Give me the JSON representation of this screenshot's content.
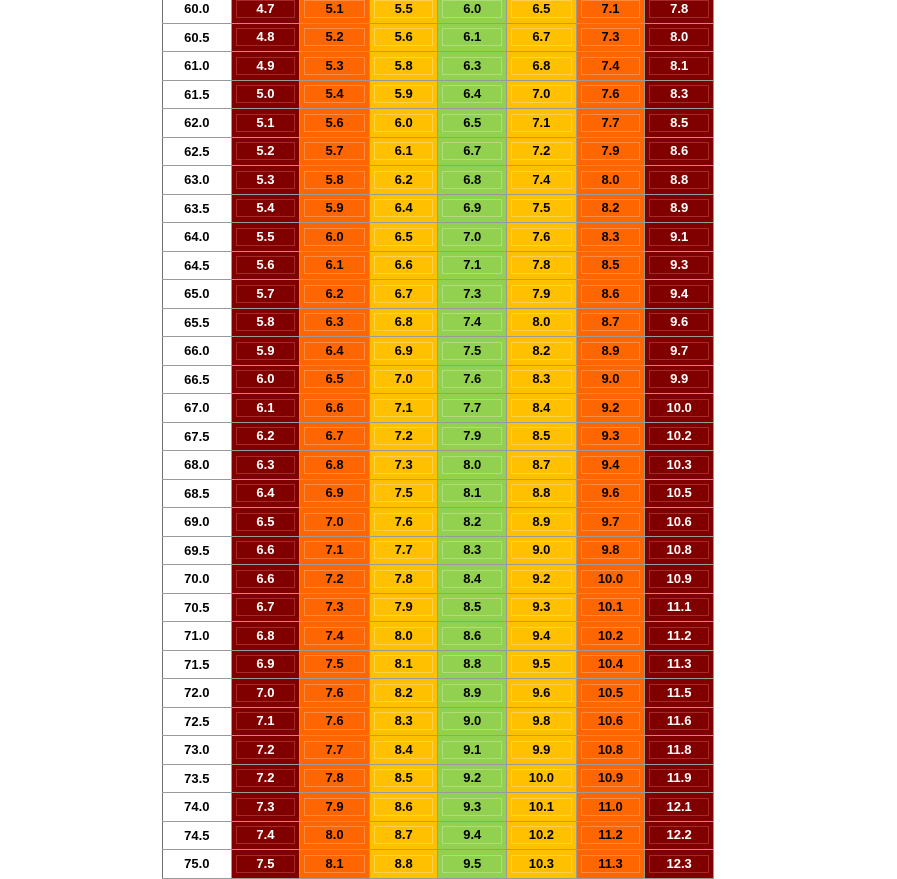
{
  "table": {
    "band_colors": [
      "#800000",
      "#ff6600",
      "#ffc000",
      "#92d050",
      "#ffc000",
      "#ff6600",
      "#800000"
    ],
    "band_text_colors": [
      "#ffffff",
      "#000000",
      "#000000",
      "#000000",
      "#000000",
      "#000000",
      "#ffffff"
    ],
    "band_box_borders": [
      "#a52a2a",
      "#ff8c42",
      "#ffd24d",
      "#b0dc7a",
      "#ffd24d",
      "#ff8c42",
      "#a52a2a"
    ],
    "rows": [
      {
        "label": "60.0",
        "values": [
          "4.7",
          "5.1",
          "5.5",
          "6.0",
          "6.5",
          "7.1",
          "7.8"
        ]
      },
      {
        "label": "60.5",
        "values": [
          "4.8",
          "5.2",
          "5.6",
          "6.1",
          "6.7",
          "7.3",
          "8.0"
        ]
      },
      {
        "label": "61.0",
        "values": [
          "4.9",
          "5.3",
          "5.8",
          "6.3",
          "6.8",
          "7.4",
          "8.1"
        ]
      },
      {
        "label": "61.5",
        "values": [
          "5.0",
          "5.4",
          "5.9",
          "6.4",
          "7.0",
          "7.6",
          "8.3"
        ]
      },
      {
        "label": "62.0",
        "values": [
          "5.1",
          "5.6",
          "6.0",
          "6.5",
          "7.1",
          "7.7",
          "8.5"
        ]
      },
      {
        "label": "62.5",
        "values": [
          "5.2",
          "5.7",
          "6.1",
          "6.7",
          "7.2",
          "7.9",
          "8.6"
        ]
      },
      {
        "label": "63.0",
        "values": [
          "5.3",
          "5.8",
          "6.2",
          "6.8",
          "7.4",
          "8.0",
          "8.8"
        ]
      },
      {
        "label": "63.5",
        "values": [
          "5.4",
          "5.9",
          "6.4",
          "6.9",
          "7.5",
          "8.2",
          "8.9"
        ]
      },
      {
        "label": "64.0",
        "values": [
          "5.5",
          "6.0",
          "6.5",
          "7.0",
          "7.6",
          "8.3",
          "9.1"
        ]
      },
      {
        "label": "64.5",
        "values": [
          "5.6",
          "6.1",
          "6.6",
          "7.1",
          "7.8",
          "8.5",
          "9.3"
        ]
      },
      {
        "label": "65.0",
        "values": [
          "5.7",
          "6.2",
          "6.7",
          "7.3",
          "7.9",
          "8.6",
          "9.4"
        ]
      },
      {
        "label": "65.5",
        "values": [
          "5.8",
          "6.3",
          "6.8",
          "7.4",
          "8.0",
          "8.7",
          "9.6"
        ]
      },
      {
        "label": "66.0",
        "values": [
          "5.9",
          "6.4",
          "6.9",
          "7.5",
          "8.2",
          "8.9",
          "9.7"
        ]
      },
      {
        "label": "66.5",
        "values": [
          "6.0",
          "6.5",
          "7.0",
          "7.6",
          "8.3",
          "9.0",
          "9.9"
        ]
      },
      {
        "label": "67.0",
        "values": [
          "6.1",
          "6.6",
          "7.1",
          "7.7",
          "8.4",
          "9.2",
          "10.0"
        ]
      },
      {
        "label": "67.5",
        "values": [
          "6.2",
          "6.7",
          "7.2",
          "7.9",
          "8.5",
          "9.3",
          "10.2"
        ]
      },
      {
        "label": "68.0",
        "values": [
          "6.3",
          "6.8",
          "7.3",
          "8.0",
          "8.7",
          "9.4",
          "10.3"
        ]
      },
      {
        "label": "68.5",
        "values": [
          "6.4",
          "6.9",
          "7.5",
          "8.1",
          "8.8",
          "9.6",
          "10.5"
        ]
      },
      {
        "label": "69.0",
        "values": [
          "6.5",
          "7.0",
          "7.6",
          "8.2",
          "8.9",
          "9.7",
          "10.6"
        ]
      },
      {
        "label": "69.5",
        "values": [
          "6.6",
          "7.1",
          "7.7",
          "8.3",
          "9.0",
          "9.8",
          "10.8"
        ]
      },
      {
        "label": "70.0",
        "values": [
          "6.6",
          "7.2",
          "7.8",
          "8.4",
          "9.2",
          "10.0",
          "10.9"
        ]
      },
      {
        "label": "70.5",
        "values": [
          "6.7",
          "7.3",
          "7.9",
          "8.5",
          "9.3",
          "10.1",
          "11.1"
        ]
      },
      {
        "label": "71.0",
        "values": [
          "6.8",
          "7.4",
          "8.0",
          "8.6",
          "9.4",
          "10.2",
          "11.2"
        ]
      },
      {
        "label": "71.5",
        "values": [
          "6.9",
          "7.5",
          "8.1",
          "8.8",
          "9.5",
          "10.4",
          "11.3"
        ]
      },
      {
        "label": "72.0",
        "values": [
          "7.0",
          "7.6",
          "8.2",
          "8.9",
          "9.6",
          "10.5",
          "11.5"
        ]
      },
      {
        "label": "72.5",
        "values": [
          "7.1",
          "7.6",
          "8.3",
          "9.0",
          "9.8",
          "10.6",
          "11.6"
        ]
      },
      {
        "label": "73.0",
        "values": [
          "7.2",
          "7.7",
          "8.4",
          "9.1",
          "9.9",
          "10.8",
          "11.8"
        ]
      },
      {
        "label": "73.5",
        "values": [
          "7.2",
          "7.8",
          "8.5",
          "9.2",
          "10.0",
          "10.9",
          "11.9"
        ]
      },
      {
        "label": "74.0",
        "values": [
          "7.3",
          "7.9",
          "8.6",
          "9.3",
          "10.1",
          "11.0",
          "12.1"
        ]
      },
      {
        "label": "74.5",
        "values": [
          "7.4",
          "8.0",
          "8.7",
          "9.4",
          "10.2",
          "11.2",
          "12.2"
        ]
      },
      {
        "label": "75.0",
        "values": [
          "7.5",
          "8.1",
          "8.8",
          "9.5",
          "10.3",
          "11.3",
          "12.3"
        ]
      }
    ]
  }
}
